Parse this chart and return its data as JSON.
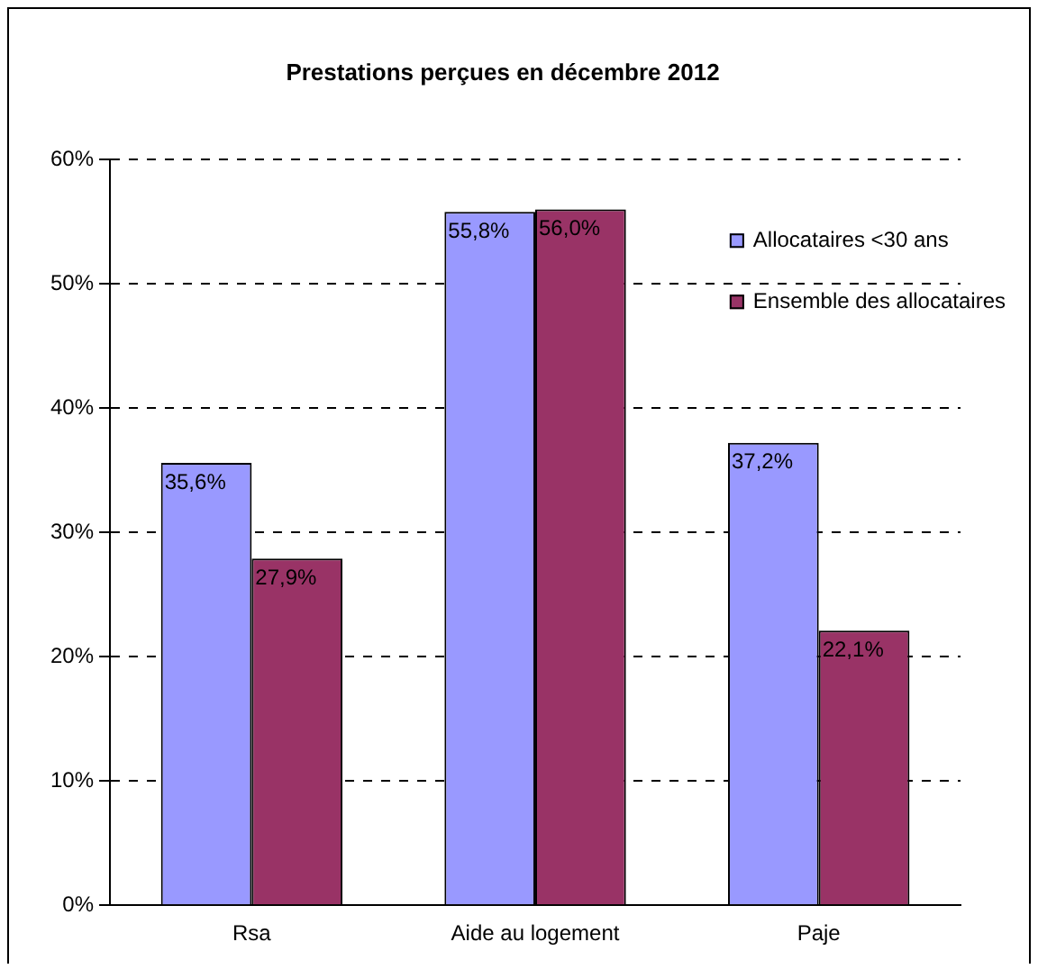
{
  "chart_data": {
    "type": "bar",
    "title": "Prestations perçues en décembre 2012",
    "categories": [
      "Rsa",
      "Aide au logement",
      "Paje"
    ],
    "series": [
      {
        "name": "Allocataires <30 ans",
        "color": "#9999ff",
        "values": [
          35.6,
          55.8,
          37.2
        ],
        "value_labels": [
          "35,6%",
          "55,8%",
          "37,2%"
        ]
      },
      {
        "name": "Ensemble des allocataires",
        "color": "#993366",
        "values": [
          27.9,
          56.0,
          22.1
        ],
        "value_labels": [
          "27,9%",
          "56,0%",
          "22,1%"
        ]
      }
    ],
    "ylim": [
      0,
      60
    ],
    "yticks": [
      {
        "value": 0,
        "label": "0%"
      },
      {
        "value": 10,
        "label": "10%"
      },
      {
        "value": 20,
        "label": "20%"
      },
      {
        "value": 30,
        "label": "30%"
      },
      {
        "value": 40,
        "label": "40%"
      },
      {
        "value": 50,
        "label": "50%"
      },
      {
        "value": 60,
        "label": "60%"
      }
    ],
    "grid": "y",
    "legend": "top right"
  }
}
